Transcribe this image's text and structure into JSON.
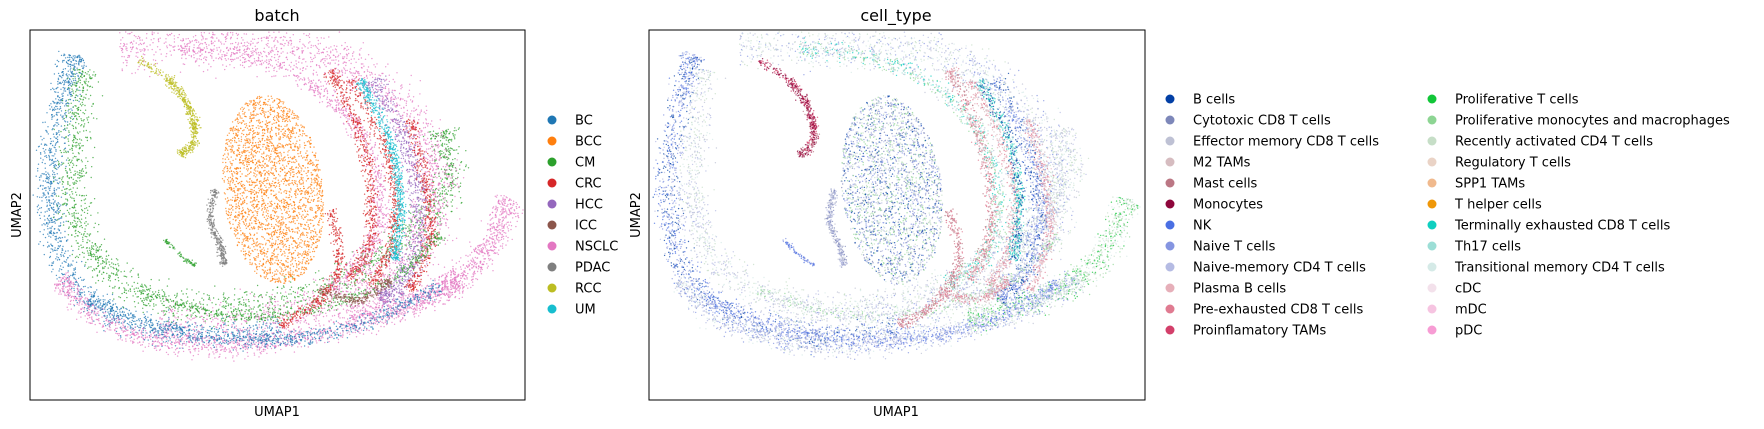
{
  "chart_data": [
    {
      "type": "scatter",
      "title": "batch",
      "xlabel": "UMAP1",
      "ylabel": "UMAP2",
      "grid": false,
      "ticks": false,
      "legend_position": "right",
      "legend": [
        {
          "label": "BC",
          "color": "#1f77b4"
        },
        {
          "label": "BCC",
          "color": "#ff7f0e"
        },
        {
          "label": "CM",
          "color": "#2ca02c"
        },
        {
          "label": "CRC",
          "color": "#d62728"
        },
        {
          "label": "HCC",
          "color": "#9467bd"
        },
        {
          "label": "ICC",
          "color": "#8c564b"
        },
        {
          "label": "NSCLC",
          "color": "#e377c2"
        },
        {
          "label": "PDAC",
          "color": "#7f7f7f"
        },
        {
          "label": "RCC",
          "color": "#bcbd22"
        },
        {
          "label": "UM",
          "color": "#17becf"
        }
      ]
    },
    {
      "type": "scatter",
      "title": "cell_type",
      "xlabel": "UMAP1",
      "ylabel": "UMAP2",
      "grid": false,
      "ticks": false,
      "legend_position": "right",
      "legend": [
        {
          "label": "B cells",
          "color": "#023fa5"
        },
        {
          "label": "Cytotoxic CD8 T cells",
          "color": "#7d87b9"
        },
        {
          "label": "Effector memory CD8 T cells",
          "color": "#bec1d4"
        },
        {
          "label": "M2 TAMs",
          "color": "#d6bcc0"
        },
        {
          "label": "Mast cells",
          "color": "#bb7784"
        },
        {
          "label": "Monocytes",
          "color": "#8e063b"
        },
        {
          "label": "NK",
          "color": "#4a6fe3"
        },
        {
          "label": "Naive T cells",
          "color": "#8595e1"
        },
        {
          "label": "Naive-memory CD4 T cells",
          "color": "#b5bbe3"
        },
        {
          "label": "Plasma B cells",
          "color": "#e6afb9"
        },
        {
          "label": "Pre-exhausted CD8 T cells",
          "color": "#e07b91"
        },
        {
          "label": "Proinflamatory TAMs",
          "color": "#d33f6a"
        },
        {
          "label": "Proliferative T cells",
          "color": "#11c638"
        },
        {
          "label": "Proliferative monocytes and macrophages",
          "color": "#8dd593"
        },
        {
          "label": "Recently activated CD4 T cells",
          "color": "#c6dec7"
        },
        {
          "label": "Regulatory T cells",
          "color": "#ead3c6"
        },
        {
          "label": "SPP1 TAMs",
          "color": "#f0b98d"
        },
        {
          "label": "T helper cells",
          "color": "#ef9708"
        },
        {
          "label": "Terminally exhausted CD8 T cells",
          "color": "#0fcfc0"
        },
        {
          "label": "Th17 cells",
          "color": "#9cded6"
        },
        {
          "label": "Transitional memory CD4 T cells",
          "color": "#d5eae7"
        },
        {
          "label": "cDC",
          "color": "#f3e1eb"
        },
        {
          "label": "mDC",
          "color": "#f6c4e1"
        },
        {
          "label": "pDC",
          "color": "#f79cd4"
        }
      ]
    }
  ]
}
